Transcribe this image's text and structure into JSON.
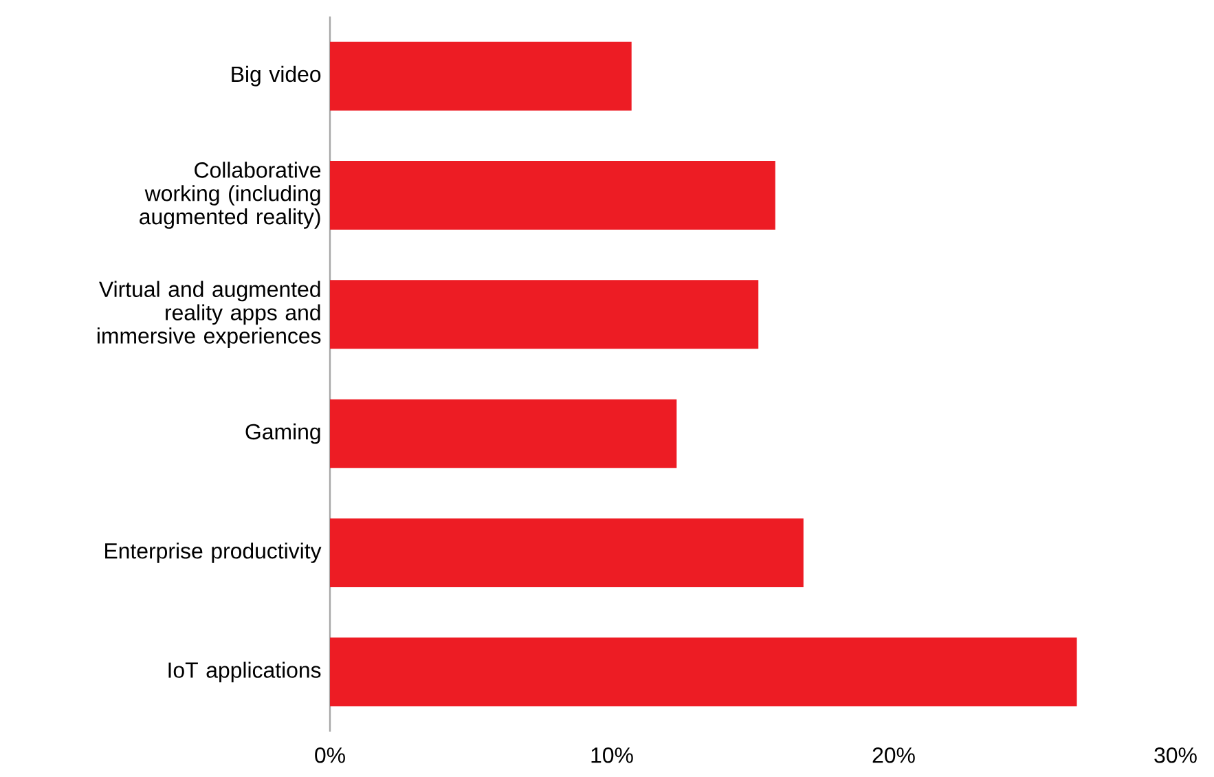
{
  "chart_data": {
    "type": "bar",
    "orientation": "horizontal",
    "categories": [
      "Big video",
      "Collaborative working (including augmented reality)",
      "Virtual and augmented reality apps and immersive experiences",
      "Gaming",
      "Enterprise productivity",
      "IoT applications"
    ],
    "values": [
      10.7,
      15.8,
      15.2,
      12.3,
      16.8,
      26.5
    ],
    "color": "#ed1c24",
    "xlim": [
      0,
      30
    ],
    "xticks": [
      {
        "value": 0,
        "label": "0%"
      },
      {
        "value": 10,
        "label": "10%"
      },
      {
        "value": 20,
        "label": "20%"
      },
      {
        "value": 30,
        "label": "30%"
      }
    ],
    "grid": false
  }
}
